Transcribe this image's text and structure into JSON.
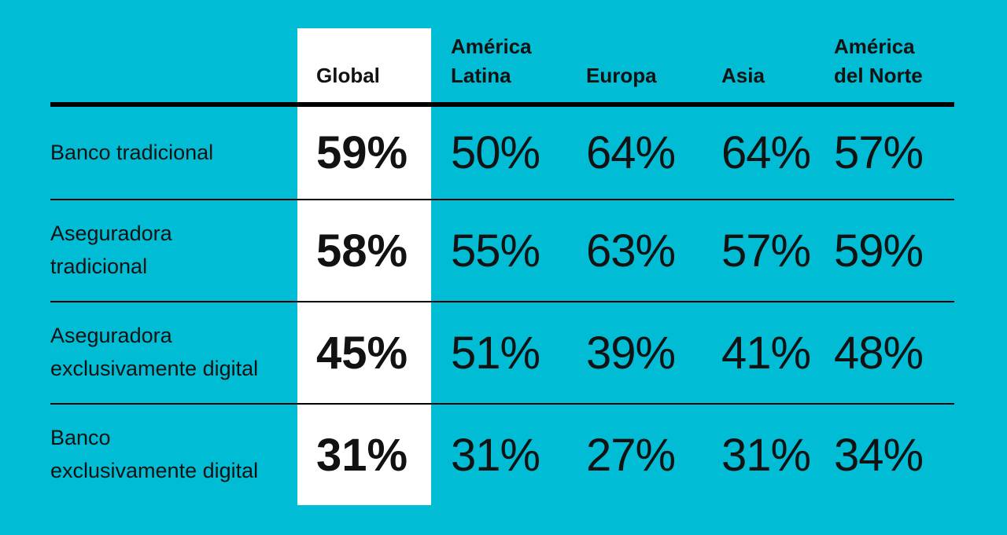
{
  "colors": {
    "background": "#00BCD4",
    "highlight": "#FFFFFF",
    "text": "#121212",
    "rule": "#000000"
  },
  "table": {
    "columns": [
      {
        "label": "Global",
        "highlighted": true
      },
      {
        "label": "América\nLatina"
      },
      {
        "label": "Europa"
      },
      {
        "label": "Asia"
      },
      {
        "label": "América\ndel Norte"
      }
    ],
    "rows": [
      {
        "label": "Banco tradicional",
        "values": [
          "59%",
          "50%",
          "64%",
          "64%",
          "57%"
        ]
      },
      {
        "label": "Aseguradora\ntradicional",
        "values": [
          "58%",
          "55%",
          "63%",
          "57%",
          "59%"
        ]
      },
      {
        "label": "Aseguradora\nexclusivamente digital",
        "values": [
          "45%",
          "51%",
          "39%",
          "41%",
          "48%"
        ]
      },
      {
        "label": "Banco\nexclusivamente digital",
        "values": [
          "31%",
          "31%",
          "27%",
          "31%",
          "34%"
        ]
      }
    ]
  },
  "chart_data": {
    "type": "table",
    "title": "",
    "categories": [
      "Global",
      "América Latina",
      "Europa",
      "Asia",
      "América del Norte"
    ],
    "series": [
      {
        "name": "Banco tradicional",
        "values": [
          59,
          50,
          64,
          64,
          57
        ]
      },
      {
        "name": "Aseguradora tradicional",
        "values": [
          58,
          55,
          63,
          57,
          59
        ]
      },
      {
        "name": "Aseguradora exclusivamente digital",
        "values": [
          45,
          51,
          39,
          41,
          48
        ]
      },
      {
        "name": "Banco exclusivamente digital",
        "values": [
          31,
          31,
          27,
          31,
          34
        ]
      }
    ],
    "unit": "%",
    "layout_hints": {
      "highlighted_column": "Global",
      "header_rule": "thick-black",
      "row_separators": "thin-black",
      "background": "cyan"
    }
  }
}
